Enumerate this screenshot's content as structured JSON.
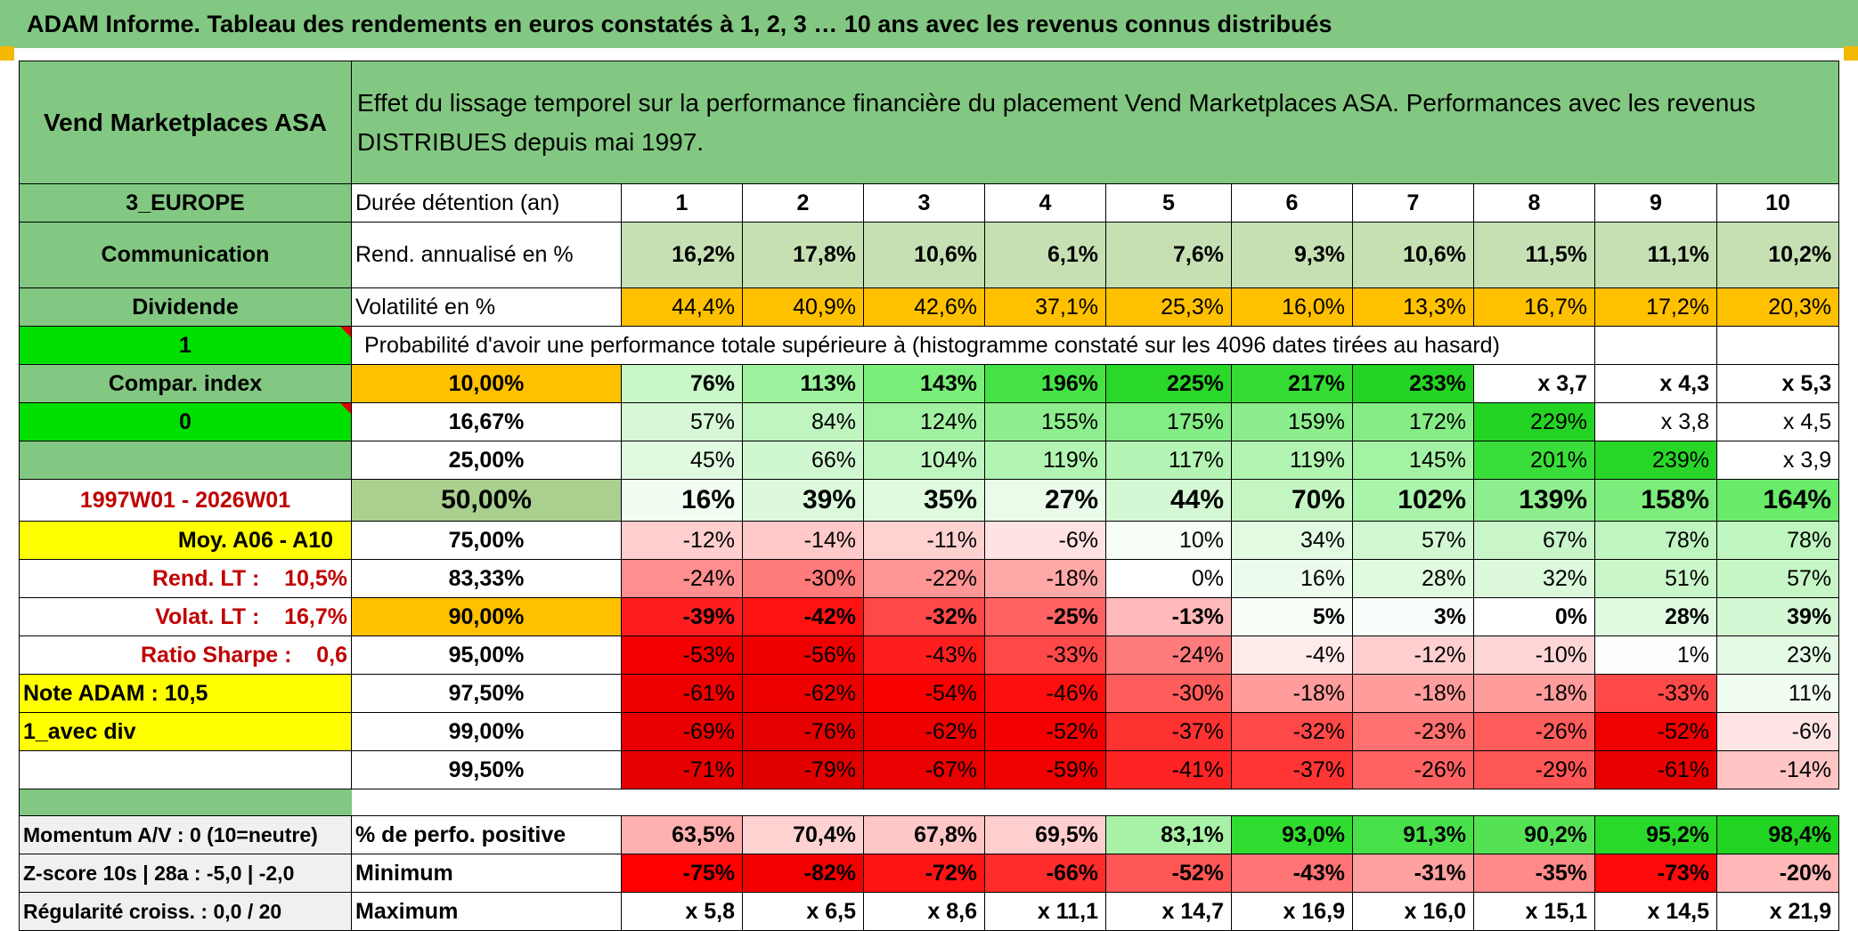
{
  "title": "ADAM Informe. Tableau des rendements en euros constatés à 1, 2, 3 … 10 ans avec les revenus connus distribués",
  "sidebar": {
    "name": "Vend Marketplaces ASA",
    "region": "3_EUROPE",
    "sector": "Communication",
    "type": "Dividende",
    "flag1": "1",
    "compar_label": "Compar. index",
    "flag2": "0",
    "period": "1997W01 - 2026W01",
    "moy": "Moy. A06 - A10",
    "rend_lt": "Rend. LT :    10,5%",
    "volat_lt": "Volat. LT :    16,7%",
    "sharpe": "Ratio Sharpe :    0,6",
    "note": "Note ADAM : 10,5",
    "avec_div": "1_avec div",
    "momentum": "Momentum A/V : 0 (10=neutre)",
    "zscore": "Z-score 10s | 28a : -5,0 | -2,0",
    "regularite": "Régularité croiss. : 0,0 / 20"
  },
  "header": {
    "description": "Effet du lissage temporel sur la performance financière du placement Vend Marketplaces ASA. Performances avec les revenus DISTRIBUES depuis mai 1997.",
    "duree_label": "Durée détention (an)",
    "years": [
      "1",
      "2",
      "3",
      "4",
      "5",
      "6",
      "7",
      "8",
      "9",
      "10"
    ],
    "rend_label": "Rend. annualisé en %",
    "rend": [
      "16,2%",
      "17,8%",
      "10,6%",
      "6,1%",
      "7,6%",
      "9,3%",
      "10,6%",
      "11,5%",
      "11,1%",
      "10,2%"
    ],
    "vol_label": "Volatilité en %",
    "vol": [
      "44,4%",
      "40,9%",
      "42,6%",
      "37,1%",
      "25,3%",
      "16,0%",
      "13,3%",
      "16,7%",
      "17,2%",
      "20,3%"
    ],
    "prob_label": "Probabilité d'avoir une performance totale supérieure à (histogramme constaté sur les 4096 dates tirées au hasard)"
  },
  "prob_rows": [
    {
      "p": "10,00%",
      "v": [
        "76%",
        "113%",
        "143%",
        "196%",
        "225%",
        "217%",
        "233%",
        "x 3,7",
        "x 4,3",
        "x 5,3"
      ]
    },
    {
      "p": "16,67%",
      "v": [
        "57%",
        "84%",
        "124%",
        "155%",
        "175%",
        "159%",
        "172%",
        "229%",
        "x 3,8",
        "x 4,5"
      ]
    },
    {
      "p": "25,00%",
      "v": [
        "45%",
        "66%",
        "104%",
        "119%",
        "117%",
        "119%",
        "145%",
        "201%",
        "239%",
        "x 3,9"
      ]
    },
    {
      "p": "50,00%",
      "v": [
        "16%",
        "39%",
        "35%",
        "27%",
        "44%",
        "70%",
        "102%",
        "139%",
        "158%",
        "164%"
      ]
    },
    {
      "p": "75,00%",
      "v": [
        "-12%",
        "-14%",
        "-11%",
        "-6%",
        "10%",
        "34%",
        "57%",
        "67%",
        "78%",
        "78%"
      ]
    },
    {
      "p": "83,33%",
      "v": [
        "-24%",
        "-30%",
        "-22%",
        "-18%",
        "0%",
        "16%",
        "28%",
        "32%",
        "51%",
        "57%"
      ]
    },
    {
      "p": "90,00%",
      "v": [
        "-39%",
        "-42%",
        "-32%",
        "-25%",
        "-13%",
        "5%",
        "3%",
        "0%",
        "28%",
        "39%"
      ]
    },
    {
      "p": "95,00%",
      "v": [
        "-53%",
        "-56%",
        "-43%",
        "-33%",
        "-24%",
        "-4%",
        "-12%",
        "-10%",
        "1%",
        "23%"
      ]
    },
    {
      "p": "97,50%",
      "v": [
        "-61%",
        "-62%",
        "-54%",
        "-46%",
        "-30%",
        "-18%",
        "-18%",
        "-18%",
        "-33%",
        "11%"
      ]
    },
    {
      "p": "99,00%",
      "v": [
        "-69%",
        "-76%",
        "-62%",
        "-52%",
        "-37%",
        "-32%",
        "-23%",
        "-26%",
        "-52%",
        "-6%"
      ]
    },
    {
      "p": "99,50%",
      "v": [
        "-71%",
        "-79%",
        "-67%",
        "-59%",
        "-41%",
        "-37%",
        "-26%",
        "-29%",
        "-61%",
        "-14%"
      ]
    }
  ],
  "summary": {
    "pos_label": "% de perfo. positive",
    "pos": [
      "63,5%",
      "70,4%",
      "67,8%",
      "69,5%",
      "83,1%",
      "93,0%",
      "91,3%",
      "90,2%",
      "95,2%",
      "98,4%"
    ],
    "min_label": "Minimum",
    "min": [
      "-75%",
      "-82%",
      "-72%",
      "-66%",
      "-52%",
      "-43%",
      "-31%",
      "-35%",
      "-73%",
      "-20%"
    ],
    "max_label": "Maximum",
    "max": [
      "x 5,8",
      "x 6,5",
      "x 8,6",
      "x 11,1",
      "x 14,7",
      "x 16,9",
      "x 16,0",
      "x 15,1",
      "x 14,5",
      "x 21,9"
    ]
  },
  "colors": {
    "title_green": "#82c882",
    "bright_green": "#00e000",
    "orange": "#ffc000",
    "yellow": "#ffff00",
    "red_text": "#c00000",
    "rend_green": "#c6e0b4"
  },
  "cell_colors": {
    "prob_rows": [
      [
        "#c8f7c8",
        "#9cf29c",
        "#7aee7a",
        "#45e245",
        "#2ad82a",
        "#34dc34",
        "#24d424",
        "#ffffff",
        "#ffffff",
        "#ffffff"
      ],
      [
        "#d6f8d6",
        "#c0f5c0",
        "#a2f0a2",
        "#8eee8e",
        "#84ec84",
        "#8ced8c",
        "#86ec86",
        "#24d424",
        "#ffffff",
        "#ffffff"
      ],
      [
        "#e0fae0",
        "#d0f8d0",
        "#bff6bf",
        "#b2f4b2",
        "#b4f4b4",
        "#b2f4b2",
        "#a4f2a4",
        "#3ade3a",
        "#28d628",
        "#ffffff"
      ],
      [
        "#f2fdf2",
        "#dcf9dc",
        "#e0fae0",
        "#eafbea",
        "#d4f8d4",
        "#c4f6c4",
        "#aaf3aa",
        "#8eee8e",
        "#7ced7c",
        "#6aeb6a"
      ],
      [
        "#ffcfcf",
        "#ffc9c9",
        "#ffd2d2",
        "#ffe2e2",
        "#f6fef6",
        "#e2fae2",
        "#d2f8d2",
        "#c9f6c9",
        "#bff5bf",
        "#bff5bf"
      ],
      [
        "#ff8f8f",
        "#ff7a7a",
        "#ff9696",
        "#ffa8a8",
        "#ffffff",
        "#ecfbec",
        "#e0fae0",
        "#dcf9dc",
        "#caf7ca",
        "#c6f6c6"
      ],
      [
        "#ff1e1e",
        "#ff1212",
        "#ff4848",
        "#ff6262",
        "#ffb9b9",
        "#f6fef6",
        "#fafefa",
        "#ffffff",
        "#e0fae0",
        "#d4f8d4"
      ],
      [
        "#f20000",
        "#ee0000",
        "#ff1e1e",
        "#ff4848",
        "#ff7a7a",
        "#ffeaea",
        "#ffcfcf",
        "#ffd6d6",
        "#fcfffc",
        "#e4fae4"
      ],
      [
        "#ee0000",
        "#ec0000",
        "#f80000",
        "#ff0e0e",
        "#ff5c5c",
        "#ff9c9c",
        "#ff9c9c",
        "#ff9c9c",
        "#ff4848",
        "#f2fdf2"
      ],
      [
        "#e80000",
        "#e40000",
        "#ec0000",
        "#f50000",
        "#ff3232",
        "#ff4848",
        "#ff7070",
        "#ff5c5c",
        "#f00000",
        "#ffe4e4"
      ],
      [
        "#e60000",
        "#e00000",
        "#ea0000",
        "#f00000",
        "#ff2424",
        "#ff3434",
        "#ff6262",
        "#ff5656",
        "#e80000",
        "#ffc4c4"
      ]
    ],
    "pos": [
      "#ffb0b0",
      "#ffd2d2",
      "#ffc6c6",
      "#ffcfcf",
      "#a8f2a8",
      "#30dc30",
      "#48e048",
      "#54e254",
      "#2ad82a",
      "#22d422"
    ],
    "min": [
      "#ff0000",
      "#f20000",
      "#ff1414",
      "#ff2c2c",
      "#ff5656",
      "#ff7474",
      "#ffa0a0",
      "#ff8a8a",
      "#ff0a0a",
      "#ffb8b8"
    ]
  }
}
